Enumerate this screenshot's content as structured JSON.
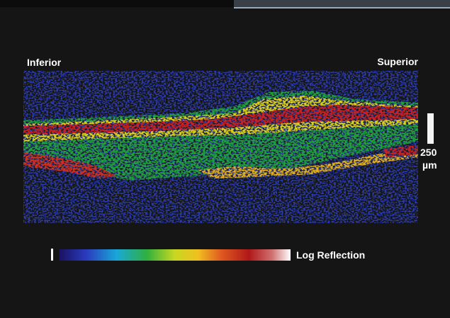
{
  "labels": {
    "left": "Inferior",
    "right": "Superior"
  },
  "scale_bar": {
    "value": "250",
    "unit": "µm"
  },
  "colorbar": {
    "label": "Log Reflection"
  }
}
